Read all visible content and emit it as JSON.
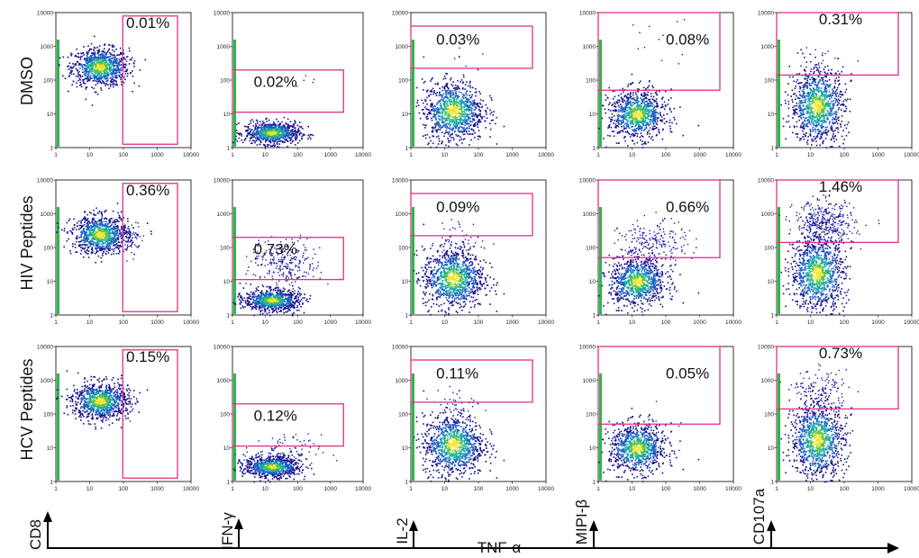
{
  "chart_data": {
    "type": "scatter",
    "title": "",
    "rows": [
      "DMSO",
      "HIV Peptides",
      "HCV Peptides"
    ],
    "column_markers": [
      "CD8",
      "IFN-γ",
      "IL-2",
      "MIPI-β",
      "CD107a"
    ],
    "x_axis_label": "TNF-α",
    "scale": "log",
    "axis_range": [
      1,
      10000
    ],
    "x_tick_labels": [
      "1",
      "10",
      "100",
      "1000",
      "10000"
    ],
    "y_tick_labels": [
      "1",
      "10",
      "100",
      "1000",
      "10000"
    ],
    "gate_percentages": [
      [
        "0.01%",
        "0.02%",
        "0.03%",
        "0.08%",
        "0.31%"
      ],
      [
        "0.36%",
        "0.73%",
        "0.09%",
        "0.66%",
        "1.46%"
      ],
      [
        "0.15%",
        "0.12%",
        "0.11%",
        "0.05%",
        "0.73%"
      ]
    ],
    "colors": {
      "gate": "#e0308a",
      "density_low": "#1a1aa0",
      "density_mid": "#1ea0b0",
      "density_high": "#e8e020",
      "axis": "#000000"
    }
  }
}
